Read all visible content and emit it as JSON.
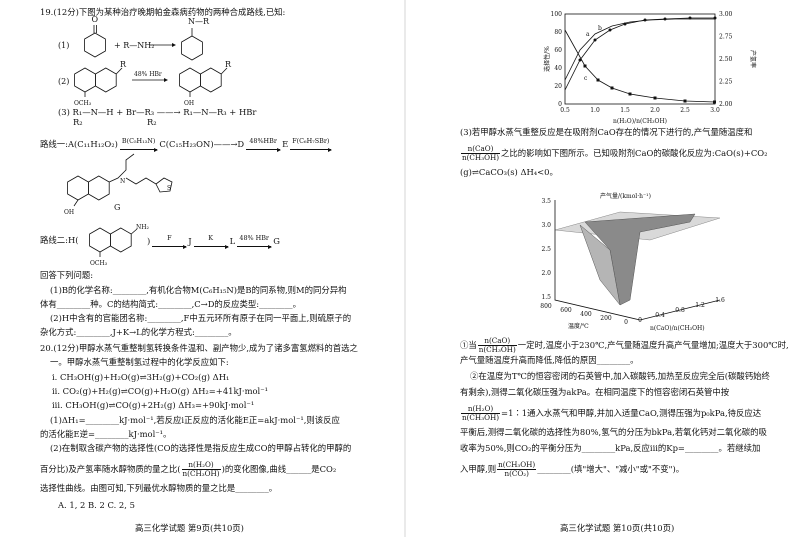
{
  "left_page": {
    "figures": {
      "eq1_label": "(1)",
      "oxygen": "O",
      "eq1_reagent": "+ R—NH₂",
      "eq1_product": "N—R",
      "eq2_label": "(2)",
      "r_group": "R",
      "methoxy": "OCH₃",
      "eq2_reagent": "48% HBr",
      "hydroxyl": "OH",
      "nitrogen": "N",
      "sulfur": "S",
      "g_label": "G",
      "amino": "NH₂"
    },
    "lines": [
      [
        "19.(12分)下图为某种治疗晚期帕金森病药物的两种合成路线,已知:"
      ],
      [
        "(3)  R₁—N—H + Br—R₃ ——→ R₁—N—R₃ + HBr"
      ],
      [
        "R₂"
      ],
      [
        "R₂"
      ],
      [
        "路线一:A(C₁₁H₁₂O₂)",
        {
          "arrow": "B(C₅H₁₃N)"
        },
        "C(C₁₅H₂₃ON)",
        "——→D",
        {
          "arrow": "48%HBr"
        },
        "E",
        {
          "arrow": "F(C₆H₇SBr)"
        }
      ],
      [
        "路线二:H("
      ],
      [
        ")",
        {
          "arrow": "F"
        },
        "J",
        {
          "arrow": "K"
        },
        "L",
        {
          "arrow": "48% HBr"
        },
        "G"
      ],
      [
        "回答下列问题:"
      ],
      [
        "(1)B的化学名称:________,有机化合物M(C₆H₁₅N)是B的同系物,则M的同分异构"
      ],
      [
        "体有________种。C的结构简式:________,C→D的反应类型:________。"
      ],
      [
        "(2)H中含有的官能团名称:________,F中五元环所有原子在同一平面上,则硫原子的"
      ],
      [
        "杂化方式:________,J+K→L的化学方程式:________。"
      ],
      [
        "20.(12分)甲醇水蒸气重整制氢转换条件温和、副产物少,成为了诸多富氢燃料的首选之"
      ],
      [
        "一。甲醇水蒸气重整制氢过程中的化学反应如下:"
      ],
      [
        "i. CH₃OH(g)+H₂O(g)⇌3H₂(g)+CO₂(g)    ΔH₁"
      ],
      [
        "ii. CO₂(g)+H₂(g)⇌CO(g)+H₂O(g)    ΔH₂=+41kJ·mol⁻¹"
      ],
      [
        "iii. CH₃OH(g)⇌CO(g)+2H₂(g)    ΔH₃=+90kJ·mol⁻¹"
      ],
      [
        "(1)ΔH₁=________kJ·mol⁻¹,若反应i正反应的活化能E正=akJ·mol⁻¹,则该反应"
      ],
      [
        "的活化能E逆=________kJ·mol⁻¹。"
      ],
      [
        "(2)在制取含碳产物的选择性(CO的选择性是指反应生成CO的甲醇占转化的甲醇的"
      ],
      [
        "百分比)及产氢率随水醇物质的量之比(",
        {
          "num": "n(H₂O)",
          "den": "n(CH₃OH)"
        },
        ")的变化图像,曲线______是CO₂"
      ],
      [
        "选择性曲线。由图可知,下列最优水醇物质的量之比是________。"
      ],
      [
        "A. 1, 2          B. 2          C. 2, 5"
      ],
      [
        "高三化学试题   第9页(共10页)"
      ]
    ]
  },
  "right_page": {
    "chart1": {
      "yticks": [
        "100",
        "80",
        "60",
        "40",
        "20",
        "0"
      ],
      "y2ticks": [
        "3.00",
        "2.75",
        "2.50",
        "2.25",
        "2.00"
      ],
      "xticks": [
        "0.5",
        "1.0",
        "1.5",
        "2.0",
        "2.5",
        "3.0"
      ],
      "ylabel": "选择性/%",
      "y2label": "产氢率",
      "xlabel": "n(H₂O)/n(CH₃OH)",
      "curve_a": "a",
      "curve_b": "b",
      "curve_c": "c"
    },
    "chart2": {
      "zticks": [
        "3.5",
        "3.0",
        "2.5",
        "2.0",
        "1.5"
      ],
      "xticks": [
        "800",
        "600",
        "400",
        "200",
        "0"
      ],
      "yticks": [
        "0",
        "0.4",
        "0.8",
        "1.2",
        "1.6"
      ],
      "zlabel": "产气量/(kmol·h⁻¹)",
      "xlabel": "温度/℃",
      "ylabel": "n(CaO)/n(CH₃OH)"
    },
    "lines": [
      [
        "(3)若甲醇水蒸气重整反应是在吸附剂CaO存在的情况下进行的,产气量随温度和"
      ],
      [
        {
          "num": "n(CaO)",
          "den": "n(CH₃OH)"
        },
        "之比的影响如下图所示。已知吸附剂CaO的碳酸化反应为:CaO(s)+CO₂"
      ],
      [
        "(g)⇌CaCO₃(s)    ΔH₄<0。"
      ],
      [
        "①当",
        {
          "num": "n(CaO)",
          "den": "n(CH₃OH)"
        },
        "一定时,温度小于230℃,产气量随温度升高产气量增加;温度大于300℃时,"
      ],
      [
        "产气量随温度升高而降低,降低的原因________。"
      ],
      [
        "②在温度为T℃的恒容密闭的石英管中,加入碳酸钙,加热至反应完全后(碳酸钙始终"
      ],
      [
        "有剩余),测得二氧化碳压强为akPa。在相同温度下的恒容密闭石英管中按"
      ],
      [
        {
          "num": "n(H₂O)",
          "den": "n(CH₃OH)"
        },
        "=1∶1通入水蒸气和甲醇,并加入适量CaO,测得压强为p₀kPa,待反应达"
      ],
      [
        "平衡后,测得二氧化碳的选择性为80%,氢气的分压为bkPa,若氧化钙对二氧化碳的吸"
      ],
      [
        "收率为50%,则CO₂的平衡分压为________kPa,反应iii的Kp=________。若继续加"
      ],
      [
        "入甲醇,则",
        {
          "num": "n(CH₃OH)",
          "den": "n(CO₂)"
        },
        "________(填\"增大\"、\"减小\"或\"不变\")。"
      ],
      [
        "高三化学试题   第10页(共10页)"
      ]
    ]
  }
}
